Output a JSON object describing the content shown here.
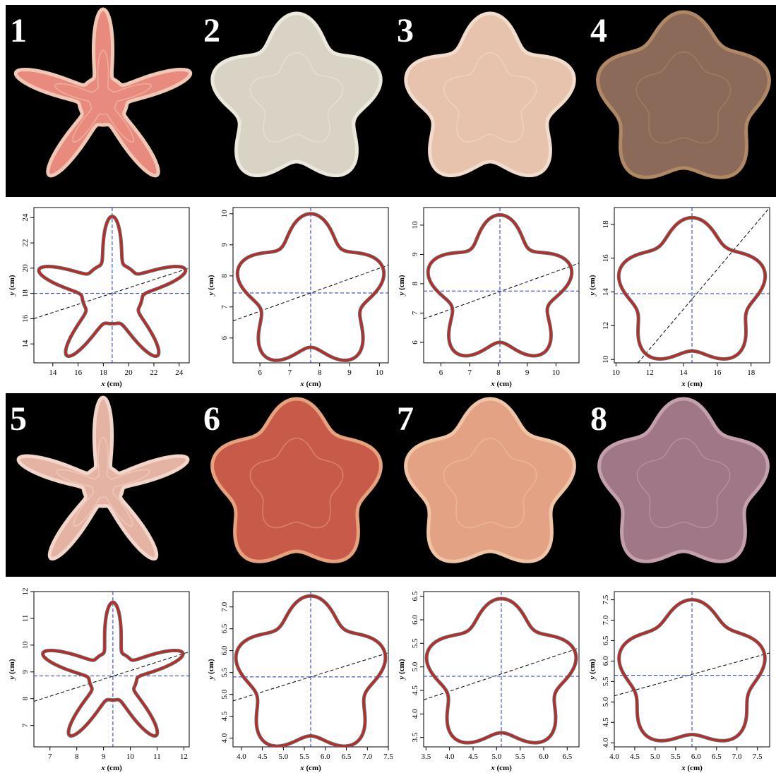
{
  "figure": {
    "panels": [
      {
        "number": "1"
      },
      {
        "number": "2"
      },
      {
        "number": "3"
      },
      {
        "number": "4"
      },
      {
        "number": "5"
      },
      {
        "number": "6"
      },
      {
        "number": "7"
      },
      {
        "number": "8"
      }
    ],
    "colors": {
      "background": "#000000",
      "outline_fit": "#d11f1f",
      "outline_raw": "#5d6b68",
      "center_lines": "#1f2fd0",
      "axis_line": "#000000"
    }
  },
  "chart_data": [
    {
      "type": "line",
      "specimen": "1",
      "xlabel": "x (cm)",
      "ylabel": "y (cm)",
      "xlim": [
        12.5,
        24.8
      ],
      "ylim": [
        12.5,
        24.8
      ],
      "xticks": [
        14,
        16,
        18,
        20,
        22,
        24
      ],
      "yticks": [
        14,
        16,
        18,
        20,
        22,
        24
      ],
      "center": [
        18.7,
        18.0
      ],
      "arms": 5,
      "r_min": 2.4,
      "r_max": 6.1,
      "arm_sharpness": 4,
      "rotation_deg": 90,
      "symmetry_line": {
        "x": [
          12.5,
          24.8
        ],
        "y": [
          16.0,
          20.0
        ]
      }
    },
    {
      "type": "line",
      "specimen": "2",
      "xlabel": "x (cm)",
      "ylabel": "y (cm)",
      "xlim": [
        5.1,
        10.3
      ],
      "ylim": [
        5.2,
        10.2
      ],
      "xticks": [
        6,
        7,
        8,
        9,
        10
      ],
      "yticks": [
        6,
        7,
        8,
        9,
        10
      ],
      "center": [
        7.7,
        7.45
      ],
      "arms": 5,
      "r_min": 1.75,
      "r_max": 2.55,
      "arm_sharpness": 1,
      "rotation_deg": 90,
      "symmetry_line": {
        "x": [
          5.1,
          10.3
        ],
        "y": [
          6.55,
          8.35
        ]
      }
    },
    {
      "type": "line",
      "specimen": "3",
      "xlabel": "x (cm)",
      "ylabel": "y (cm)",
      "xlim": [
        5.4,
        10.8
      ],
      "ylim": [
        5.3,
        10.6
      ],
      "xticks": [
        6,
        7,
        8,
        9,
        10
      ],
      "yticks": [
        6,
        7,
        8,
        9,
        10
      ],
      "center": [
        8.05,
        7.75
      ],
      "arms": 5,
      "r_min": 1.75,
      "r_max": 2.6,
      "arm_sharpness": 1,
      "rotation_deg": 90,
      "symmetry_line": {
        "x": [
          5.4,
          10.8
        ],
        "y": [
          6.8,
          8.7
        ]
      }
    },
    {
      "type": "line",
      "specimen": "4",
      "xlabel": "x (cm)",
      "ylabel": "y (cm)",
      "xlim": [
        9.9,
        19.1
      ],
      "ylim": [
        9.8,
        19.0
      ],
      "xticks": [
        10,
        12,
        14,
        16,
        18
      ],
      "yticks": [
        10,
        12,
        14,
        16,
        18
      ],
      "center": [
        14.5,
        13.9
      ],
      "arms": 5,
      "r_min": 3.4,
      "r_max": 4.5,
      "arm_sharpness": 1,
      "rotation_deg": 90,
      "symmetry_line": {
        "x": [
          11.3,
          19.1
        ],
        "y": [
          9.8,
          19.0
        ]
      }
    },
    {
      "type": "line",
      "specimen": "5",
      "xlabel": "x (cm)",
      "ylabel": "y (cm)",
      "xlim": [
        6.4,
        12.2
      ],
      "ylim": [
        6.2,
        12.0
      ],
      "xticks": [
        7,
        8,
        9,
        10,
        11,
        12
      ],
      "yticks": [
        7,
        8,
        9,
        10,
        11,
        12
      ],
      "center": [
        9.35,
        8.85
      ],
      "arms": 5,
      "r_min": 0.9,
      "r_max": 2.75,
      "arm_sharpness": 4,
      "rotation_deg": 90,
      "symmetry_line": {
        "x": [
          6.4,
          12.2
        ],
        "y": [
          7.9,
          9.75
        ]
      }
    },
    {
      "type": "line",
      "specimen": "6",
      "xlabel": "x (cm)",
      "ylabel": "y (cm)",
      "xlim": [
        3.8,
        7.5
      ],
      "ylim": [
        3.8,
        7.35
      ],
      "xticks": [
        4.0,
        4.5,
        5.0,
        5.5,
        6.0,
        6.5,
        7.0,
        7.5
      ],
      "yticks": [
        4.0,
        4.5,
        5.0,
        5.5,
        6.0,
        6.5,
        7.0
      ],
      "center": [
        5.65,
        5.4
      ],
      "arms": 5,
      "r_min": 1.35,
      "r_max": 1.85,
      "arm_sharpness": 1,
      "rotation_deg": 90,
      "symmetry_line": {
        "x": [
          3.8,
          7.5
        ],
        "y": [
          4.85,
          5.95
        ]
      }
    },
    {
      "type": "line",
      "specimen": "7",
      "xlabel": "x (cm)",
      "ylabel": "y (cm)",
      "xlim": [
        3.45,
        6.75
      ],
      "ylim": [
        3.3,
        6.6
      ],
      "xticks": [
        3.5,
        4.0,
        4.5,
        5.0,
        5.5,
        6.0,
        6.5
      ],
      "yticks": [
        3.5,
        4.0,
        4.5,
        5.0,
        5.5,
        6.0,
        6.5
      ],
      "center": [
        5.1,
        4.8
      ],
      "arms": 5,
      "r_min": 1.2,
      "r_max": 1.65,
      "arm_sharpness": 1,
      "rotation_deg": 90,
      "symmetry_line": {
        "x": [
          3.45,
          6.75
        ],
        "y": [
          4.3,
          5.4
        ]
      }
    },
    {
      "type": "line",
      "specimen": "8",
      "xlabel": "x (cm)",
      "ylabel": "y (cm)",
      "xlim": [
        4.0,
        7.8
      ],
      "ylim": [
        3.9,
        7.7
      ],
      "xticks": [
        4.0,
        4.5,
        5.0,
        5.5,
        6.0,
        6.5,
        7.0,
        7.5
      ],
      "yticks": [
        4.0,
        4.5,
        5.0,
        5.5,
        6.0,
        6.5,
        7.0,
        7.5
      ],
      "center": [
        5.9,
        5.65
      ],
      "arms": 5,
      "r_min": 1.45,
      "r_max": 1.85,
      "arm_sharpness": 1,
      "rotation_deg": 90,
      "symmetry_line": {
        "x": [
          4.0,
          7.8
        ],
        "y": [
          5.15,
          6.2
        ]
      }
    }
  ]
}
